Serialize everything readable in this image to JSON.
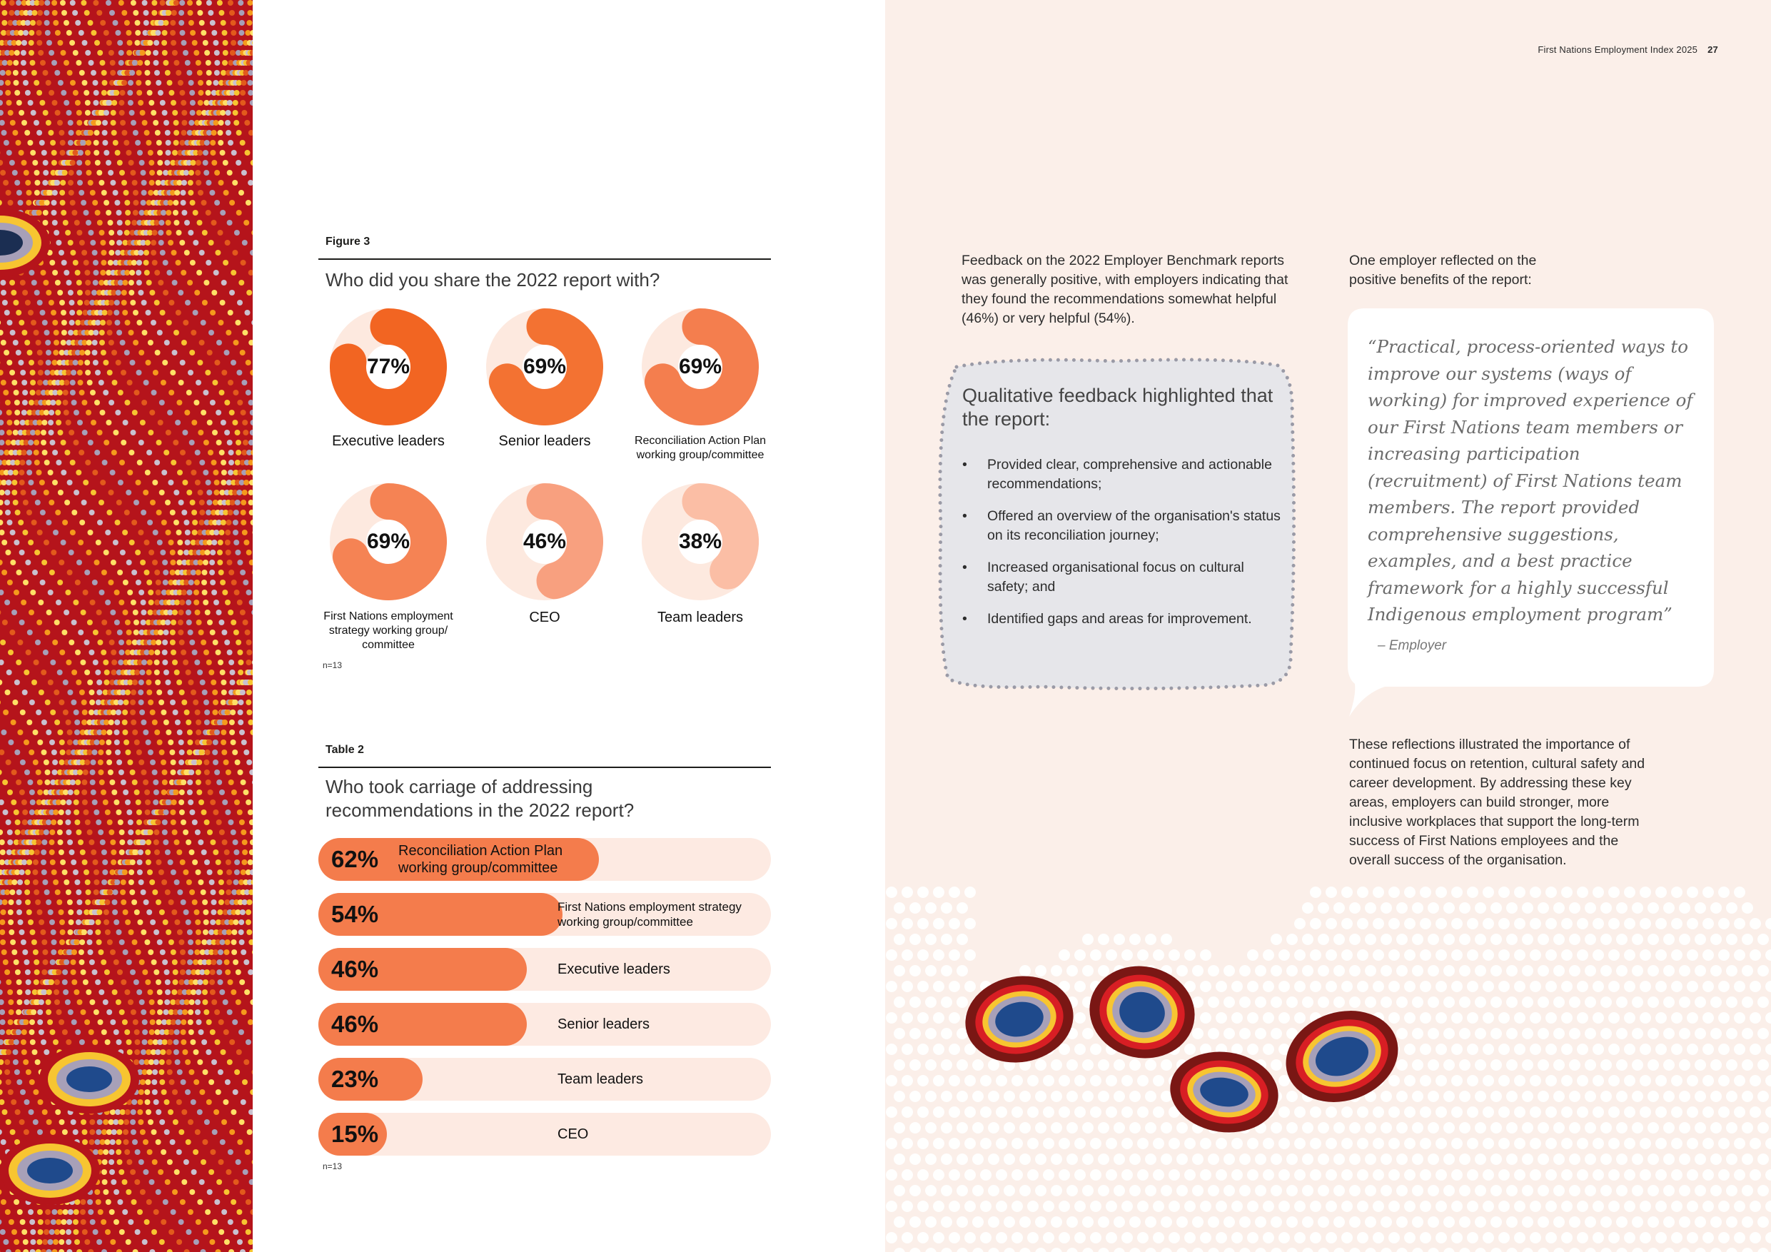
{
  "running_head": {
    "title": "First Nations Employment Index 2025",
    "page_number": "27"
  },
  "figure3": {
    "label": "Figure 3",
    "title": "Who did you share the 2022 report with?",
    "n_note": "n=13",
    "items": [
      {
        "value": 77,
        "pct_text": "77%",
        "label": "Executive leaders",
        "color": "#f26522"
      },
      {
        "value": 69,
        "pct_text": "69%",
        "label": "Senior leaders",
        "color": "#f37232"
      },
      {
        "value": 69,
        "pct_text": "69%",
        "label": "Reconciliation Action Plan working group/committee",
        "color": "#f47e4e"
      },
      {
        "value": 69,
        "pct_text": "69%",
        "label": "First Nations employment strategy working group/ committee",
        "color": "#f58354"
      },
      {
        "value": 46,
        "pct_text": "46%",
        "label": "CEO",
        "color": "#f8a07f"
      },
      {
        "value": 38,
        "pct_text": "38%",
        "label": "Team leaders",
        "color": "#fbbea5"
      }
    ]
  },
  "table2": {
    "label": "Table 2",
    "title_line1": "Who took carriage of addressing",
    "title_line2": "recommendations in the 2022 report?",
    "n_note": "n=13",
    "rows": [
      {
        "value": 62,
        "pct_text": "62%",
        "label": "Reconciliation Action Plan working group/committee"
      },
      {
        "value": 54,
        "pct_text": "54%",
        "label": "First Nations employment strategy working group/committee"
      },
      {
        "value": 46,
        "pct_text": "46%",
        "label": "Executive leaders"
      },
      {
        "value": 46,
        "pct_text": "46%",
        "label": "Senior leaders"
      },
      {
        "value": 23,
        "pct_text": "23%",
        "label": "Team leaders"
      },
      {
        "value": 15,
        "pct_text": "15%",
        "label": "CEO"
      }
    ]
  },
  "intro_feedback": "Feedback on the 2022 Employer Benchmark reports was generally positive, with employers indicating that they found the recommendations somewhat helpful (46%) or very helpful (54%).",
  "qualitative": {
    "heading": "Qualitative feedback highlighted that the report:",
    "bullets": [
      "Provided clear, comprehensive and actionable recommendations;",
      "Offered an overview of the organisation's status on its reconciliation journey;",
      "Increased organisational focus on cultural safety; and",
      "Identified gaps and areas for improvement."
    ]
  },
  "employer_intro": "One employer reflected on the positive benefits of the report:",
  "quote": {
    "text": "“Practical, process-oriented ways to improve our systems (ways of working) for improved experience of our First Nations team members or increasing participation (recruitment) of First Nations team members. The report provided comprehensive suggestions, examples, and a best practice framework for a highly successful Indigenous employment program”",
    "attribution": "– Employer"
  },
  "reflections": "These reflections illustrated the importance of continued focus on retention, cultural safety and career development. By addressing these key areas, employers can build stronger, more inclusive workplaces that support the long-term success of First Nations employees and the overall success of the organisation.",
  "colors": {
    "accent_orange": "#f47c4c",
    "bar_track": "#fdeae2",
    "page_tint": "#fbefe9",
    "qual_box": "#e6e6ea"
  }
}
